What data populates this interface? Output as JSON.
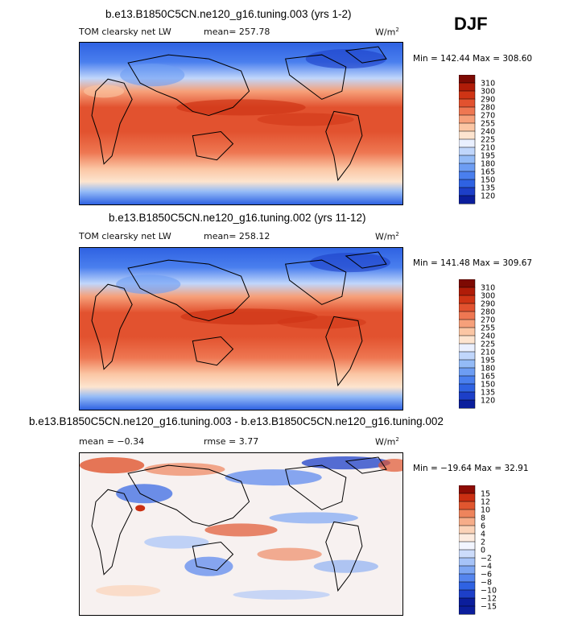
{
  "season": "DJF",
  "colors": {
    "abs_scale": [
      "#070a6e",
      "#0b1e9c",
      "#1d3fc8",
      "#2f62e2",
      "#4a7fee",
      "#6d9df3",
      "#94bbf7",
      "#c0d6fb",
      "#eaf0ff",
      "#fde4cf",
      "#fbc6a4",
      "#f6a07a",
      "#ee7752",
      "#e2522f",
      "#cf3415",
      "#b01c08",
      "#7d0a03"
    ],
    "diff_scale": [
      "#0b1e9c",
      "#1d3fc8",
      "#2f62e2",
      "#5585ee",
      "#7da6f3",
      "#a6c3f8",
      "#ccdcfb",
      "#f2f5ff",
      "#fdece0",
      "#fbd3b8",
      "#f6ad89",
      "#ee845c",
      "#e0562f",
      "#cb2f12",
      "#8e0c04"
    ]
  },
  "chart_data": [
    {
      "type": "heatmap",
      "title": "b.e13.B1850C5CN.ne120_g16.tuning.003 (yrs 1-2)",
      "variable": "TOM clearsky net LW",
      "mean_label": "mean=",
      "mean": "257.78",
      "units": "W/m",
      "units_sup": "2",
      "minmax": "Min = 142.44 Max = 308.60",
      "min": 142.44,
      "max": 308.6,
      "colorbar_levels": [
        "310",
        "300",
        "290",
        "280",
        "270",
        "255",
        "240",
        "225",
        "210",
        "195",
        "180",
        "165",
        "150",
        "135",
        "120"
      ]
    },
    {
      "type": "heatmap",
      "title": "b.e13.B1850C5CN.ne120_g16.tuning.002 (yrs 11-12)",
      "variable": "TOM clearsky net LW",
      "mean_label": "mean=",
      "mean": "258.12",
      "units": "W/m",
      "units_sup": "2",
      "minmax": "Min = 141.48 Max = 309.67",
      "min": 141.48,
      "max": 309.67,
      "colorbar_levels": [
        "310",
        "300",
        "290",
        "280",
        "270",
        "255",
        "240",
        "225",
        "210",
        "195",
        "180",
        "165",
        "150",
        "135",
        "120"
      ]
    },
    {
      "type": "heatmap",
      "title": "b.e13.B1850C5CN.ne120_g16.tuning.003 - b.e13.B1850C5CN.ne120_g16.tuning.002",
      "mean_label": "mean =",
      "mean": "−0.34",
      "rmse_label": "rmse =",
      "rmse": "3.77",
      "units": "W/m",
      "units_sup": "2",
      "minmax": "Min = −19.64 Max =  32.91",
      "min": -19.64,
      "max": 32.91,
      "colorbar_levels": [
        "15",
        "12",
        "10",
        "8",
        "6",
        "4",
        "2",
        "0",
        "−2",
        "−4",
        "−6",
        "−8",
        "−10",
        "−12",
        "−15"
      ]
    }
  ]
}
